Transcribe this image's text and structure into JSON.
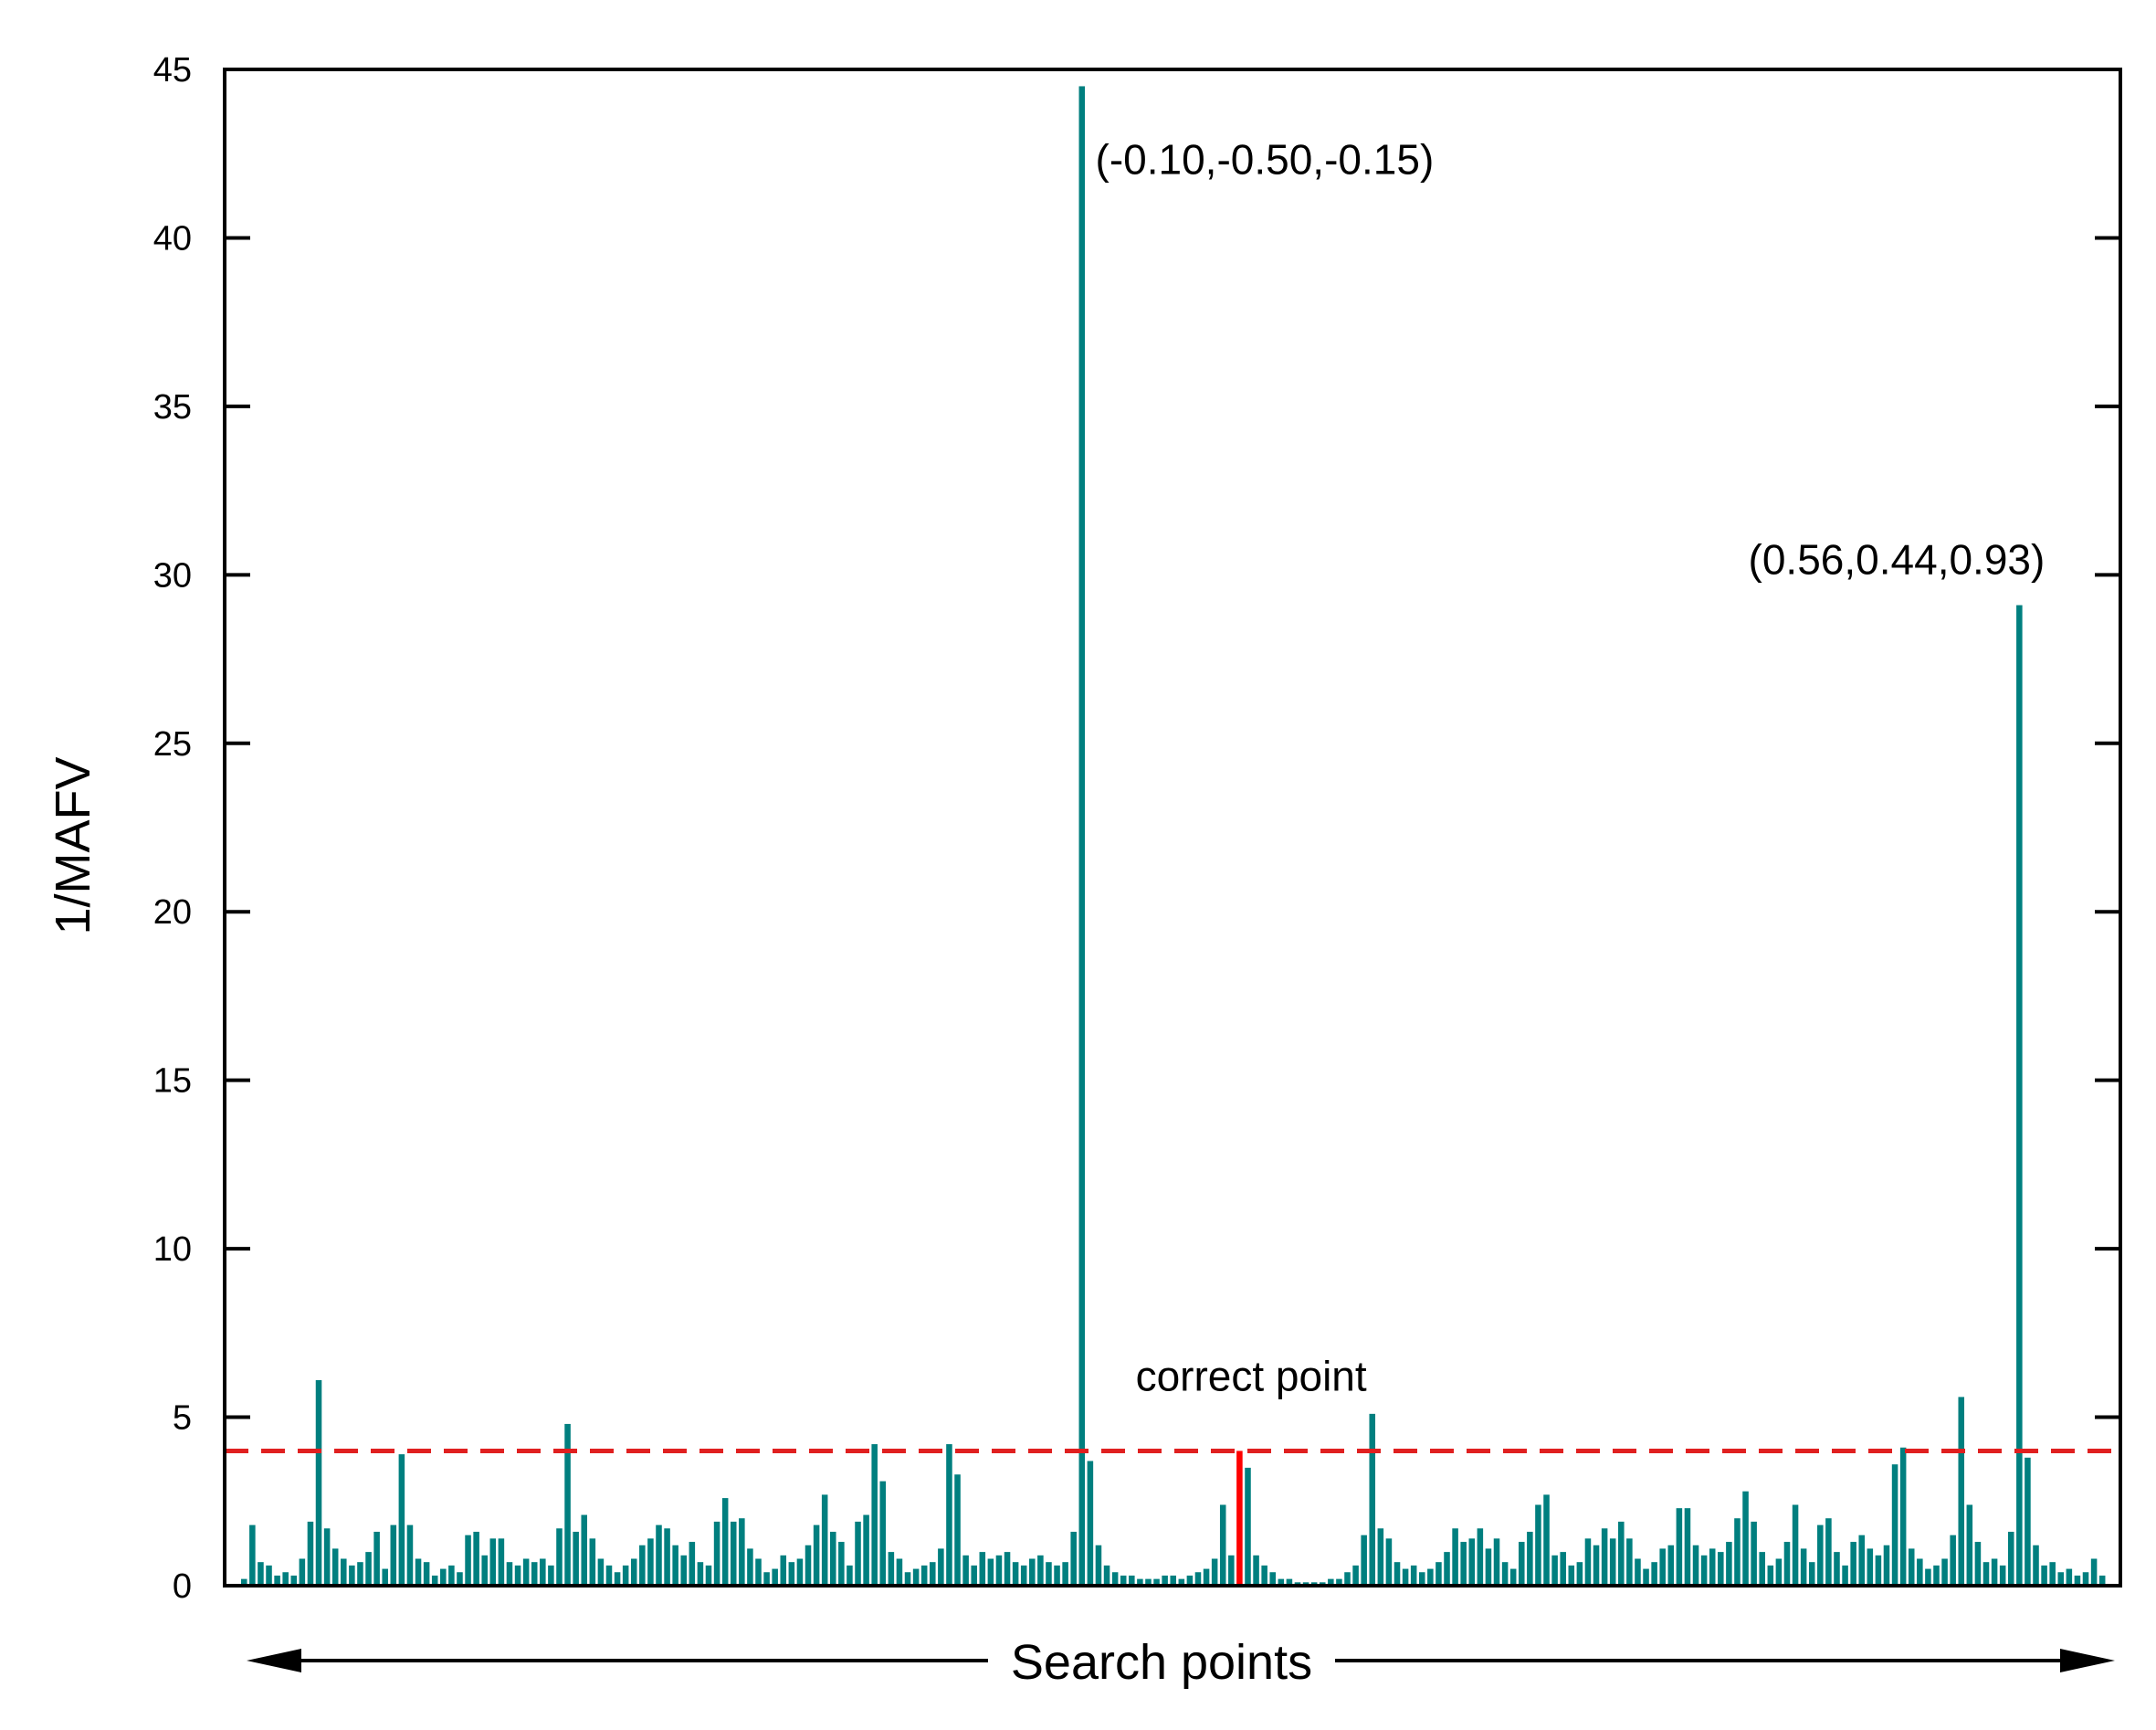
{
  "colors": {
    "bars": "#007f7f",
    "highlight": "#ff0000",
    "threshold": "#e02020",
    "axis": "#000000",
    "background": "#ffffff"
  },
  "chart_data": {
    "type": "bar",
    "title": "",
    "xlabel": "Search points",
    "ylabel": "1/MAFV",
    "ylim": [
      0,
      45
    ],
    "yticks": [
      "0",
      "5",
      "10",
      "15",
      "20",
      "25",
      "30",
      "35",
      "40",
      "45"
    ],
    "x_axis_direction": "double-arrow",
    "threshold": {
      "value": 4.0,
      "style": "dashed"
    },
    "highlighted_point": {
      "label": "correct point",
      "value": 4.0
    },
    "annotations": [
      {
        "text": "(-0.10,-0.50,-0.15)",
        "value": 44.5
      },
      {
        "text": "(0.56,0.44,0.93)",
        "value": 29.1
      },
      {
        "text": "correct point",
        "value": 4.0
      }
    ],
    "values": [
      0.2,
      1.8,
      0.7,
      0.6,
      0.3,
      0.4,
      0.3,
      0.8,
      1.9,
      6.1,
      1.7,
      1.1,
      0.8,
      0.6,
      0.7,
      1.0,
      1.6,
      0.5,
      1.8,
      3.9,
      1.8,
      0.8,
      0.7,
      0.3,
      0.5,
      0.6,
      0.4,
      1.5,
      1.6,
      0.9,
      1.4,
      1.4,
      0.7,
      0.6,
      0.8,
      0.7,
      0.8,
      0.6,
      1.7,
      4.8,
      1.6,
      2.1,
      1.4,
      0.8,
      0.6,
      0.4,
      0.6,
      0.8,
      1.2,
      1.4,
      1.8,
      1.7,
      1.2,
      0.9,
      1.3,
      0.7,
      0.6,
      1.9,
      2.6,
      1.9,
      2.0,
      1.1,
      0.8,
      0.4,
      0.5,
      0.9,
      0.7,
      0.8,
      1.2,
      1.8,
      2.7,
      1.6,
      1.3,
      0.6,
      1.9,
      2.1,
      4.2,
      3.1,
      1.0,
      0.8,
      0.4,
      0.5,
      0.6,
      0.7,
      1.1,
      4.2,
      3.3,
      0.9,
      0.6,
      1.0,
      0.8,
      0.9,
      1.0,
      0.7,
      0.6,
      0.8,
      0.9,
      0.7,
      0.6,
      0.7,
      1.6,
      44.5,
      3.7,
      1.2,
      0.6,
      0.4,
      0.3,
      0.3,
      0.2,
      0.2,
      0.2,
      0.3,
      0.3,
      0.2,
      0.3,
      0.4,
      0.5,
      0.8,
      2.4,
      0.9,
      4.0,
      3.5,
      0.9,
      0.6,
      0.4,
      0.2,
      0.2,
      0.1,
      0.1,
      0.1,
      0.1,
      0.2,
      0.2,
      0.4,
      0.6,
      1.5,
      5.1,
      1.7,
      1.4,
      0.7,
      0.5,
      0.6,
      0.4,
      0.5,
      0.7,
      1.0,
      1.7,
      1.3,
      1.4,
      1.7,
      1.1,
      1.4,
      0.7,
      0.5,
      1.3,
      1.6,
      2.4,
      2.7,
      0.9,
      1.0,
      0.6,
      0.7,
      1.4,
      1.2,
      1.7,
      1.4,
      1.9,
      1.4,
      0.8,
      0.5,
      0.7,
      1.1,
      1.2,
      2.3,
      2.3,
      1.2,
      0.9,
      1.1,
      1.0,
      1.3,
      2.0,
      2.8,
      1.9,
      1.0,
      0.6,
      0.8,
      1.3,
      2.4,
      1.1,
      0.7,
      1.8,
      2.0,
      1.0,
      0.6,
      1.3,
      1.5,
      1.1,
      0.9,
      1.2,
      3.6,
      4.1,
      1.1,
      0.8,
      0.5,
      0.6,
      0.8,
      1.5,
      5.6,
      2.4,
      1.3,
      0.7,
      0.8,
      0.6,
      1.6,
      29.1,
      3.8,
      1.2,
      0.6,
      0.7,
      0.4,
      0.5,
      0.3,
      0.4,
      0.8,
      0.3
    ]
  }
}
